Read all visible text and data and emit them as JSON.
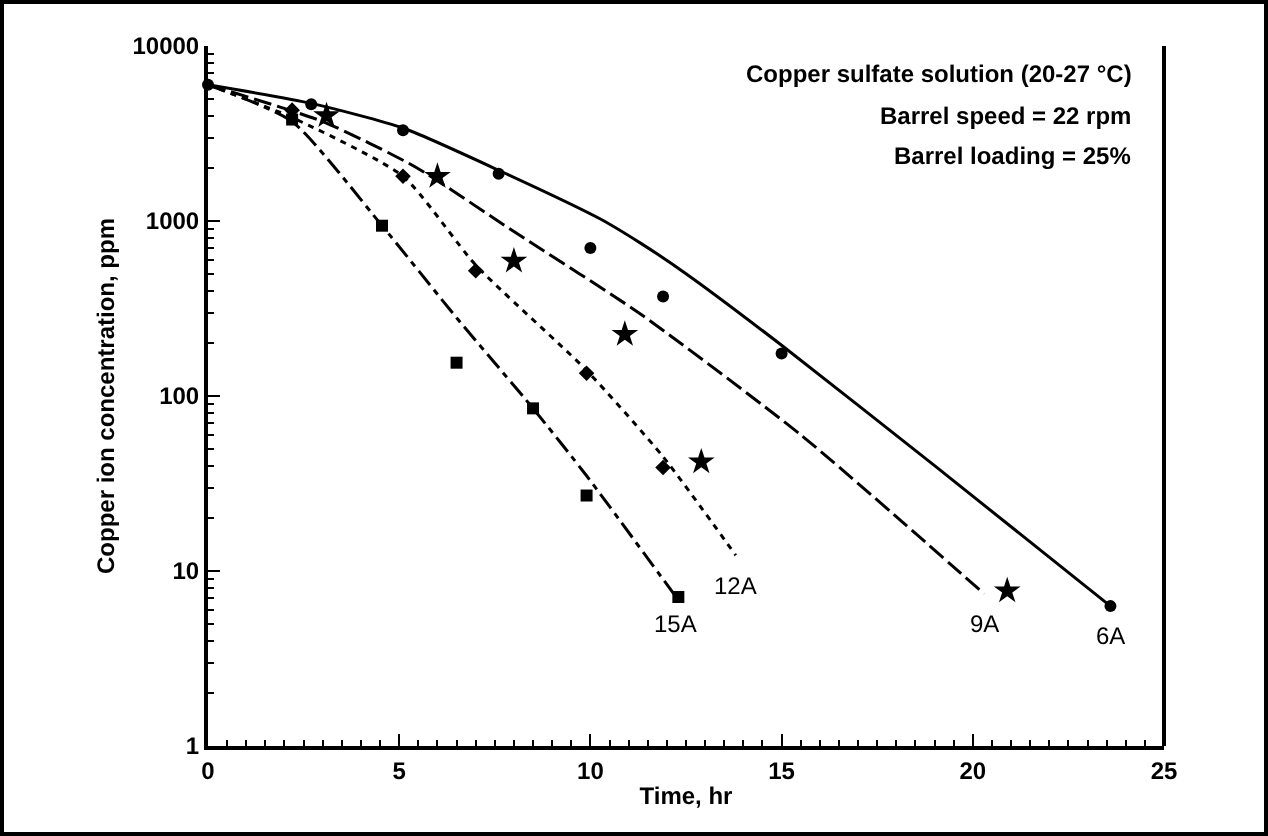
{
  "chart_data": {
    "type": "line",
    "xlabel": "Time, hr",
    "ylabel": "Copper ion concentration, ppm",
    "log": "y",
    "xlim": [
      0,
      25
    ],
    "xticks": [
      0,
      5,
      10,
      15,
      20,
      25
    ],
    "ylim": [
      1,
      10000
    ],
    "yticks": [
      1,
      10,
      100,
      1000,
      10000
    ],
    "grid": false,
    "legend": false,
    "annotations": [
      "Copper sulfate solution (20-27 °C)",
      "Barrel speed = 22 rpm",
      "Barrel loading = 25%"
    ],
    "series": [
      {
        "name": "6A",
        "line_style": "solid",
        "color": "#000000",
        "x": [
          0,
          2.7,
          5.1,
          7.6,
          10.25,
          11.3,
          12.5,
          15,
          19,
          23.6
        ],
        "values": [
          6000,
          4700,
          3400,
          1950,
          1030,
          750,
          500,
          195,
          40,
          6.3
        ]
      },
      {
        "name": "9A",
        "line_style": "dashed",
        "color": "#000000",
        "x": [
          0,
          3,
          5.4,
          8,
          11.3,
          15.5,
          20.3
        ],
        "values": [
          6000,
          3700,
          2050,
          870,
          295,
          60,
          7.4
        ]
      },
      {
        "name": "12A",
        "line_style": "dotted",
        "color": "#000000",
        "x": [
          0,
          2.2,
          5.1,
          7,
          9.9,
          11.9,
          13.8
        ],
        "values": [
          6000,
          3900,
          1800,
          560,
          140,
          45,
          12.3
        ]
      },
      {
        "name": "15A",
        "line_style": "dashdot",
        "color": "#000000",
        "x": [
          0,
          2.2,
          4.55,
          6.5,
          8.5,
          9.9,
          12.2
        ],
        "values": [
          6000,
          3700,
          940,
          280,
          85,
          35,
          7.3
        ]
      },
      {
        "type": "scatter",
        "marker": "circle",
        "color": "#000000",
        "x": [
          0,
          2.7,
          5.1,
          7.6,
          10,
          11.9,
          15,
          23.6
        ],
        "values": [
          6000,
          4650,
          3300,
          1860,
          700,
          370,
          175,
          6.3
        ]
      },
      {
        "type": "scatter",
        "marker": "star",
        "color": "#000000",
        "x": [
          3.1,
          6,
          8,
          10.9,
          12.9,
          20.9
        ],
        "values": [
          4000,
          1800,
          590,
          225,
          42,
          7.7
        ]
      },
      {
        "type": "scatter",
        "marker": "diamond",
        "color": "#000000",
        "x": [
          2.2,
          5.1,
          7,
          9.9,
          11.9
        ],
        "values": [
          4300,
          1800,
          520,
          135,
          39
        ]
      },
      {
        "type": "scatter",
        "marker": "square",
        "color": "#000000",
        "x": [
          2.2,
          4.55,
          6.5,
          8.5,
          9.9,
          12.3
        ],
        "values": [
          3800,
          940,
          155,
          85,
          27,
          7.1
        ]
      }
    ]
  }
}
